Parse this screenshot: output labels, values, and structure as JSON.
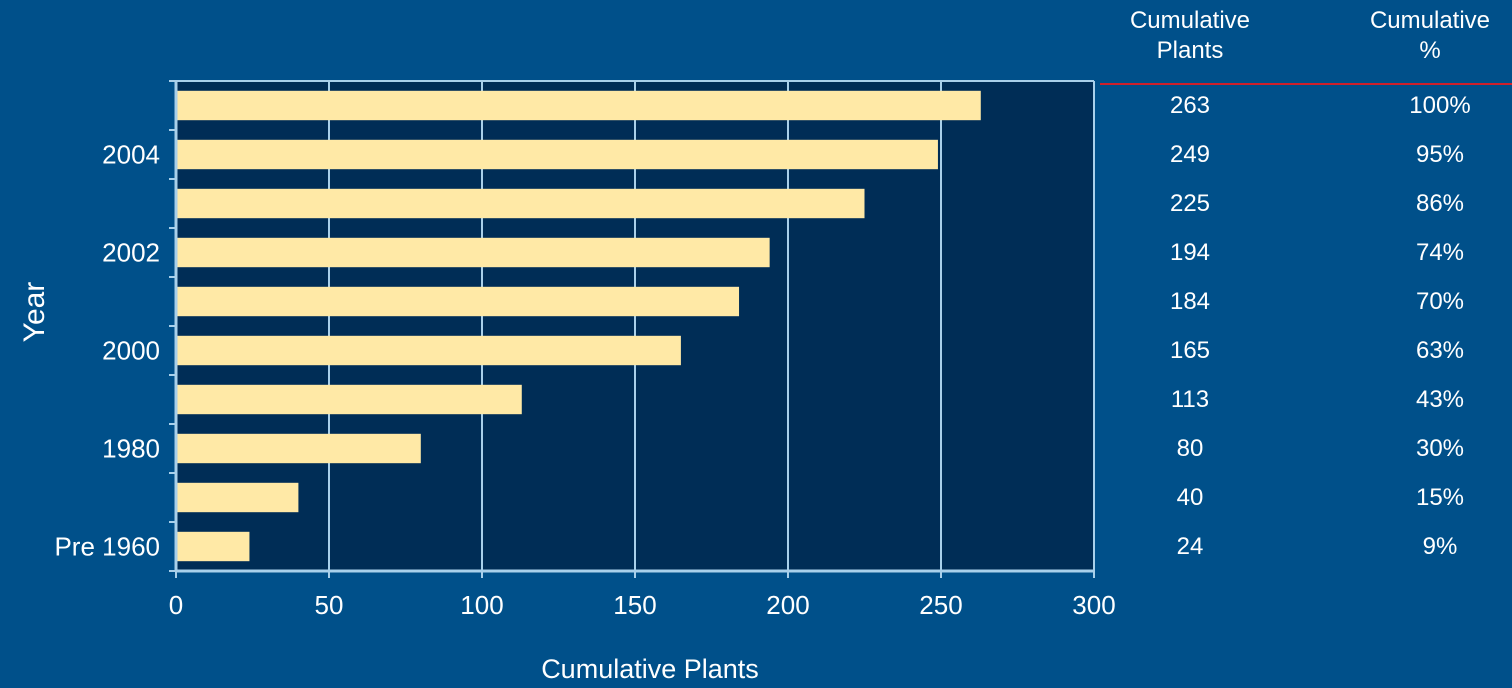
{
  "colors": {
    "background": "#00508a",
    "plot_area": "#002d56",
    "bar_fill": "#ffe9a6",
    "grid": "#a9d0ea",
    "header_rule": "#d0202a",
    "text": "#ffffff"
  },
  "table": {
    "headers": {
      "plants": [
        "Cumulative",
        "Plants"
      ],
      "percent": [
        "Cumulative",
        "%"
      ]
    },
    "rows": [
      {
        "plants": "263",
        "percent": "100%"
      },
      {
        "plants": "249",
        "percent": "95%"
      },
      {
        "plants": "225",
        "percent": "86%"
      },
      {
        "plants": "194",
        "percent": "74%"
      },
      {
        "plants": "184",
        "percent": "70%"
      },
      {
        "plants": "165",
        "percent": "63%"
      },
      {
        "plants": "113",
        "percent": "43%"
      },
      {
        "plants": "80",
        "percent": "30%"
      },
      {
        "plants": "40",
        "percent": "15%"
      },
      {
        "plants": "24",
        "percent": "9%"
      }
    ]
  },
  "chart_data": {
    "type": "bar",
    "orientation": "horizontal",
    "xlabel": "Cumulative Plants",
    "ylabel": "Year",
    "xlim": [
      0,
      300
    ],
    "xticks": [
      0,
      50,
      100,
      150,
      200,
      250,
      300
    ],
    "grid": true,
    "categories": [
      "",
      "2004",
      "",
      "2002",
      "",
      "2000",
      "",
      "1980",
      "",
      "Pre 1960"
    ],
    "values": [
      263,
      249,
      225,
      194,
      184,
      165,
      113,
      80,
      40,
      24
    ]
  }
}
